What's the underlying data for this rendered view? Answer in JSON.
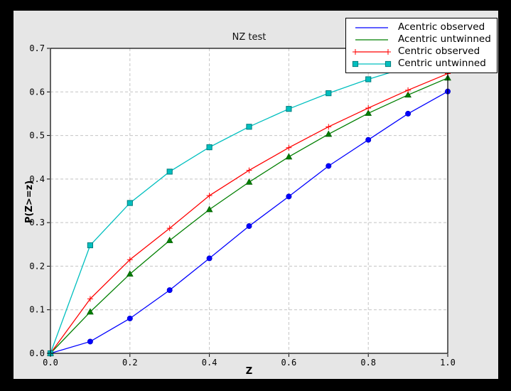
{
  "colors": {
    "window_bg": "#000000",
    "figure_bg": "#e6e6e6",
    "plot_bg": "#ffffff",
    "frame": "#000000",
    "grid": "#c4c4c4",
    "text": "#000000"
  },
  "chart_data": {
    "type": "line",
    "title": "NZ test",
    "xlabel": "Z",
    "ylabel": "P(Z>=z)",
    "xlim": [
      0.0,
      1.0
    ],
    "ylim": [
      0.0,
      0.7
    ],
    "xticks": [
      0.0,
      0.2,
      0.4,
      0.6,
      0.8,
      1.0
    ],
    "xtick_labels": [
      "0.0",
      "0.2",
      "0.4",
      "0.6",
      "0.8",
      "1.0"
    ],
    "yticks": [
      0.0,
      0.1,
      0.2,
      0.3,
      0.4,
      0.5,
      0.6,
      0.7
    ],
    "ytick_labels": [
      "0.0",
      "0.1",
      "0.2",
      "0.3",
      "0.4",
      "0.5",
      "0.6",
      "0.7"
    ],
    "grid": true,
    "legend_position": "upper right",
    "x": [
      0.0,
      0.1,
      0.2,
      0.3,
      0.4,
      0.5,
      0.6,
      0.7,
      0.8,
      0.9,
      1.0
    ],
    "series": [
      {
        "name": "Acentric observed",
        "color": "#0000ff",
        "marker": "circle",
        "marker_edge": "#0000cc",
        "legend_markers": false,
        "values": [
          0.0,
          0.027,
          0.08,
          0.145,
          0.218,
          0.292,
          0.36,
          0.43,
          0.49,
          0.55,
          0.601
        ]
      },
      {
        "name": "Acentric untwinned",
        "color": "#007f00",
        "marker": "triangle",
        "marker_edge": "#005f00",
        "legend_markers": false,
        "values": [
          0.0,
          0.095,
          0.182,
          0.259,
          0.33,
          0.393,
          0.451,
          0.503,
          0.551,
          0.593,
          0.632
        ]
      },
      {
        "name": "Centric observed",
        "color": "#ff0000",
        "marker": "plus",
        "marker_edge": "#ff0000",
        "legend_markers": true,
        "values": [
          0.0,
          0.125,
          0.215,
          0.287,
          0.362,
          0.42,
          0.472,
          0.52,
          0.563,
          0.604,
          0.642
        ]
      },
      {
        "name": "Centric untwinned",
        "color": "#00bfbf",
        "marker": "square",
        "marker_edge": "#007d7d",
        "legend_markers": true,
        "values": [
          0.0,
          0.248,
          0.345,
          0.417,
          0.473,
          0.52,
          0.561,
          0.597,
          0.629,
          0.657,
          0.683
        ]
      }
    ]
  }
}
